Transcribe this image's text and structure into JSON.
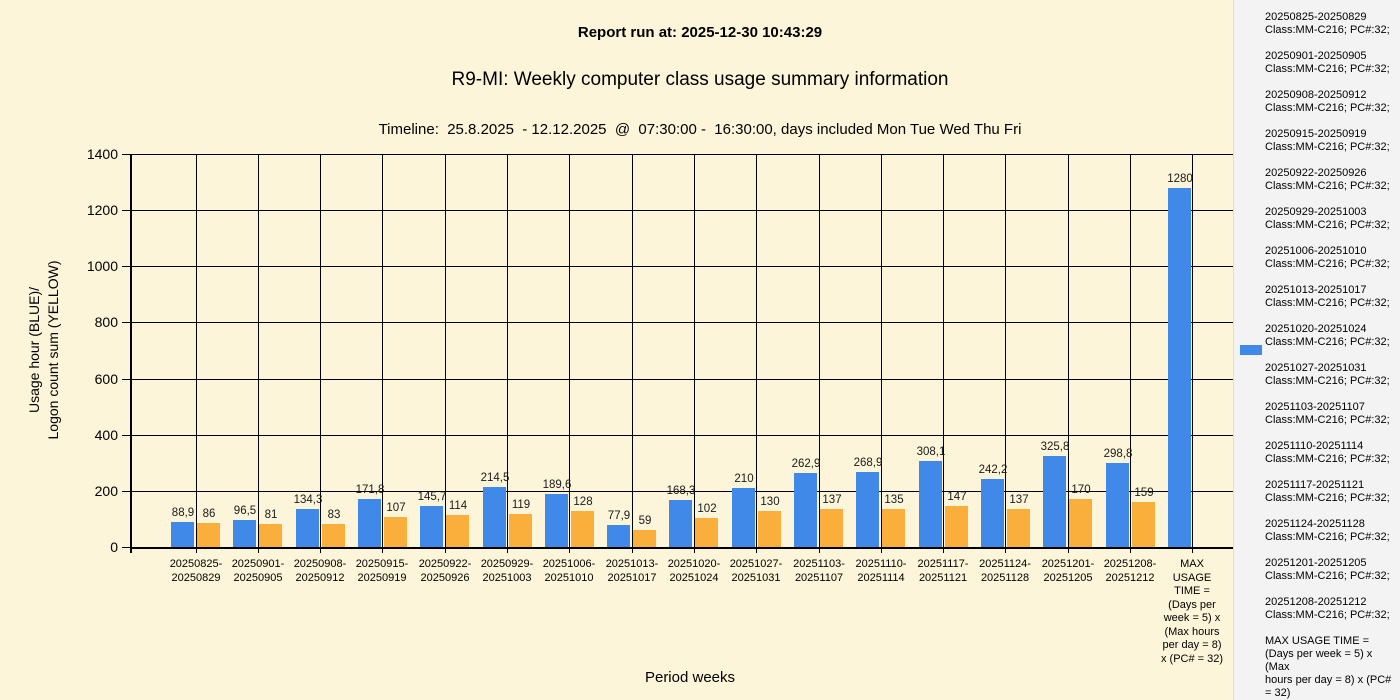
{
  "header": {
    "report_run": "Report run at: 2025-12-30 10:43:29",
    "title": "R9-MI: Weekly computer class usage summary information",
    "timeline": "Timeline:  25.8.2025  - 12.12.2025  @  07:30:00 -  16:30:00, days included Mon Tue Wed Thu Fri"
  },
  "colors": {
    "background": "#FCF5D9",
    "sidebar_background": "#F3F3F3",
    "grid": "#000000",
    "usage_hour_blue": "#4189E8",
    "logon_count_yellow": "#FAAF3C"
  },
  "chart_data": {
    "type": "bar",
    "title": "R9-MI: Weekly computer class usage summary information",
    "xlabel": "Period weeks",
    "ylabel_lines": [
      "Usage hour (BLUE)/",
      "Logon count sum (YELLOW)"
    ],
    "ylim": [
      0,
      1400
    ],
    "yticks": [
      0,
      200,
      400,
      600,
      800,
      1000,
      1200,
      1400
    ],
    "grid": true,
    "legend_position": "right-panel",
    "categories": [
      [
        "20250825-",
        "20250829"
      ],
      [
        "20250901-",
        "20250905"
      ],
      [
        "20250908-",
        "20250912"
      ],
      [
        "20250915-",
        "20250919"
      ],
      [
        "20250922-",
        "20250926"
      ],
      [
        "20250929-",
        "20251003"
      ],
      [
        "20251006-",
        "20251010"
      ],
      [
        "20251013-",
        "20251017"
      ],
      [
        "20251020-",
        "20251024"
      ],
      [
        "20251027-",
        "20251031"
      ],
      [
        "20251103-",
        "20251107"
      ],
      [
        "20251110-",
        "20251114"
      ],
      [
        "20251117-",
        "20251121"
      ],
      [
        "20251124-",
        "20251128"
      ],
      [
        "20251201-",
        "20251205"
      ],
      [
        "20251208-",
        "20251212"
      ],
      [
        "MAX USAGE",
        "TIME =",
        "(Days per",
        "week = 5) x",
        "(Max hours",
        "per day = 8)",
        "x (PC# = 32)"
      ]
    ],
    "series": [
      {
        "name": "Usage hour",
        "color": "#4189E8",
        "values": [
          88.9,
          96.5,
          134.3,
          171.8,
          145.7,
          214.5,
          189.6,
          77.9,
          168.3,
          210,
          262.9,
          268.9,
          308.1,
          242.2,
          325.8,
          298.8,
          1280
        ],
        "labels": [
          "88,9",
          "96,5",
          "134,3",
          "171,8",
          "145,7",
          "214,5",
          "189,6",
          "77,9",
          "168,3",
          "210",
          "262,9",
          "268,9",
          "308,1",
          "242,2",
          "325,8",
          "298,8",
          "1280"
        ]
      },
      {
        "name": "Logon count sum",
        "color": "#FAAF3C",
        "values": [
          86,
          81,
          83,
          107,
          114,
          119,
          128,
          59,
          102,
          130,
          137,
          135,
          147,
          137,
          170,
          159,
          null
        ],
        "labels": [
          "86",
          "81",
          "83",
          "107",
          "114",
          "119",
          "128",
          "59",
          "102",
          "130",
          "137",
          "135",
          "147",
          "137",
          "170",
          "159",
          null
        ]
      }
    ]
  },
  "legend": {
    "swatch_color": "#4189E8",
    "entries": [
      {
        "period": "20250825-20250829",
        "detail": "Class:MM-C216; PC#:32;"
      },
      {
        "period": "20250901-20250905",
        "detail": "Class:MM-C216; PC#:32;"
      },
      {
        "period": "20250908-20250912",
        "detail": "Class:MM-C216; PC#:32;"
      },
      {
        "period": "20250915-20250919",
        "detail": "Class:MM-C216; PC#:32;"
      },
      {
        "period": "20250922-20250926",
        "detail": "Class:MM-C216; PC#:32;"
      },
      {
        "period": "20250929-20251003",
        "detail": "Class:MM-C216; PC#:32;"
      },
      {
        "period": "20251006-20251010",
        "detail": "Class:MM-C216; PC#:32;"
      },
      {
        "period": "20251013-20251017",
        "detail": "Class:MM-C216; PC#:32;"
      },
      {
        "period": "20251020-20251024",
        "detail": "Class:MM-C216; PC#:32;"
      },
      {
        "period": "20251027-20251031",
        "detail": "Class:MM-C216; PC#:32;"
      },
      {
        "period": "20251103-20251107",
        "detail": "Class:MM-C216; PC#:32;"
      },
      {
        "period": "20251110-20251114",
        "detail": "Class:MM-C216; PC#:32;"
      },
      {
        "period": "20251117-20251121",
        "detail": "Class:MM-C216; PC#:32;"
      },
      {
        "period": "20251124-20251128",
        "detail": "Class:MM-C216; PC#:32;"
      },
      {
        "period": "20251201-20251205",
        "detail": "Class:MM-C216; PC#:32;"
      },
      {
        "period": "20251208-20251212",
        "detail": "Class:MM-C216; PC#:32;"
      }
    ],
    "note_lines": [
      "MAX USAGE TIME =",
      " (Days per week = 5) x (Max",
      "hours per day = 8) x (PC#",
      "= 32)"
    ]
  }
}
